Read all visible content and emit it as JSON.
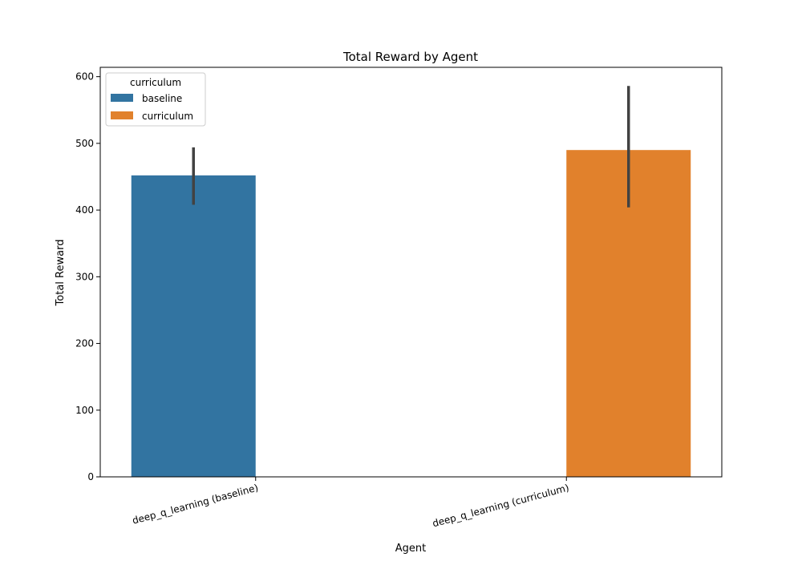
{
  "chart_data": {
    "type": "bar",
    "title": "Total Reward by Agent",
    "xlabel": "Agent",
    "ylabel": "Total Reward",
    "categories": [
      "deep_q_learning (baseline)",
      "deep_q_learning (curriculum)"
    ],
    "ylim": [
      0,
      614
    ],
    "yticks": [
      0,
      100,
      200,
      300,
      400,
      500,
      600
    ],
    "series": [
      {
        "name": "baseline",
        "color": "#3274a1",
        "values": [
          452,
          null
        ],
        "error_low": [
          408,
          null
        ],
        "error_high": [
          494,
          null
        ]
      },
      {
        "name": "curriculum",
        "color": "#e1812c",
        "values": [
          null,
          490
        ],
        "error_low": [
          null,
          404
        ],
        "error_high": [
          null,
          586
        ]
      }
    ],
    "legend": {
      "title": "curriculum",
      "position": "top-left"
    },
    "grid": false
  }
}
